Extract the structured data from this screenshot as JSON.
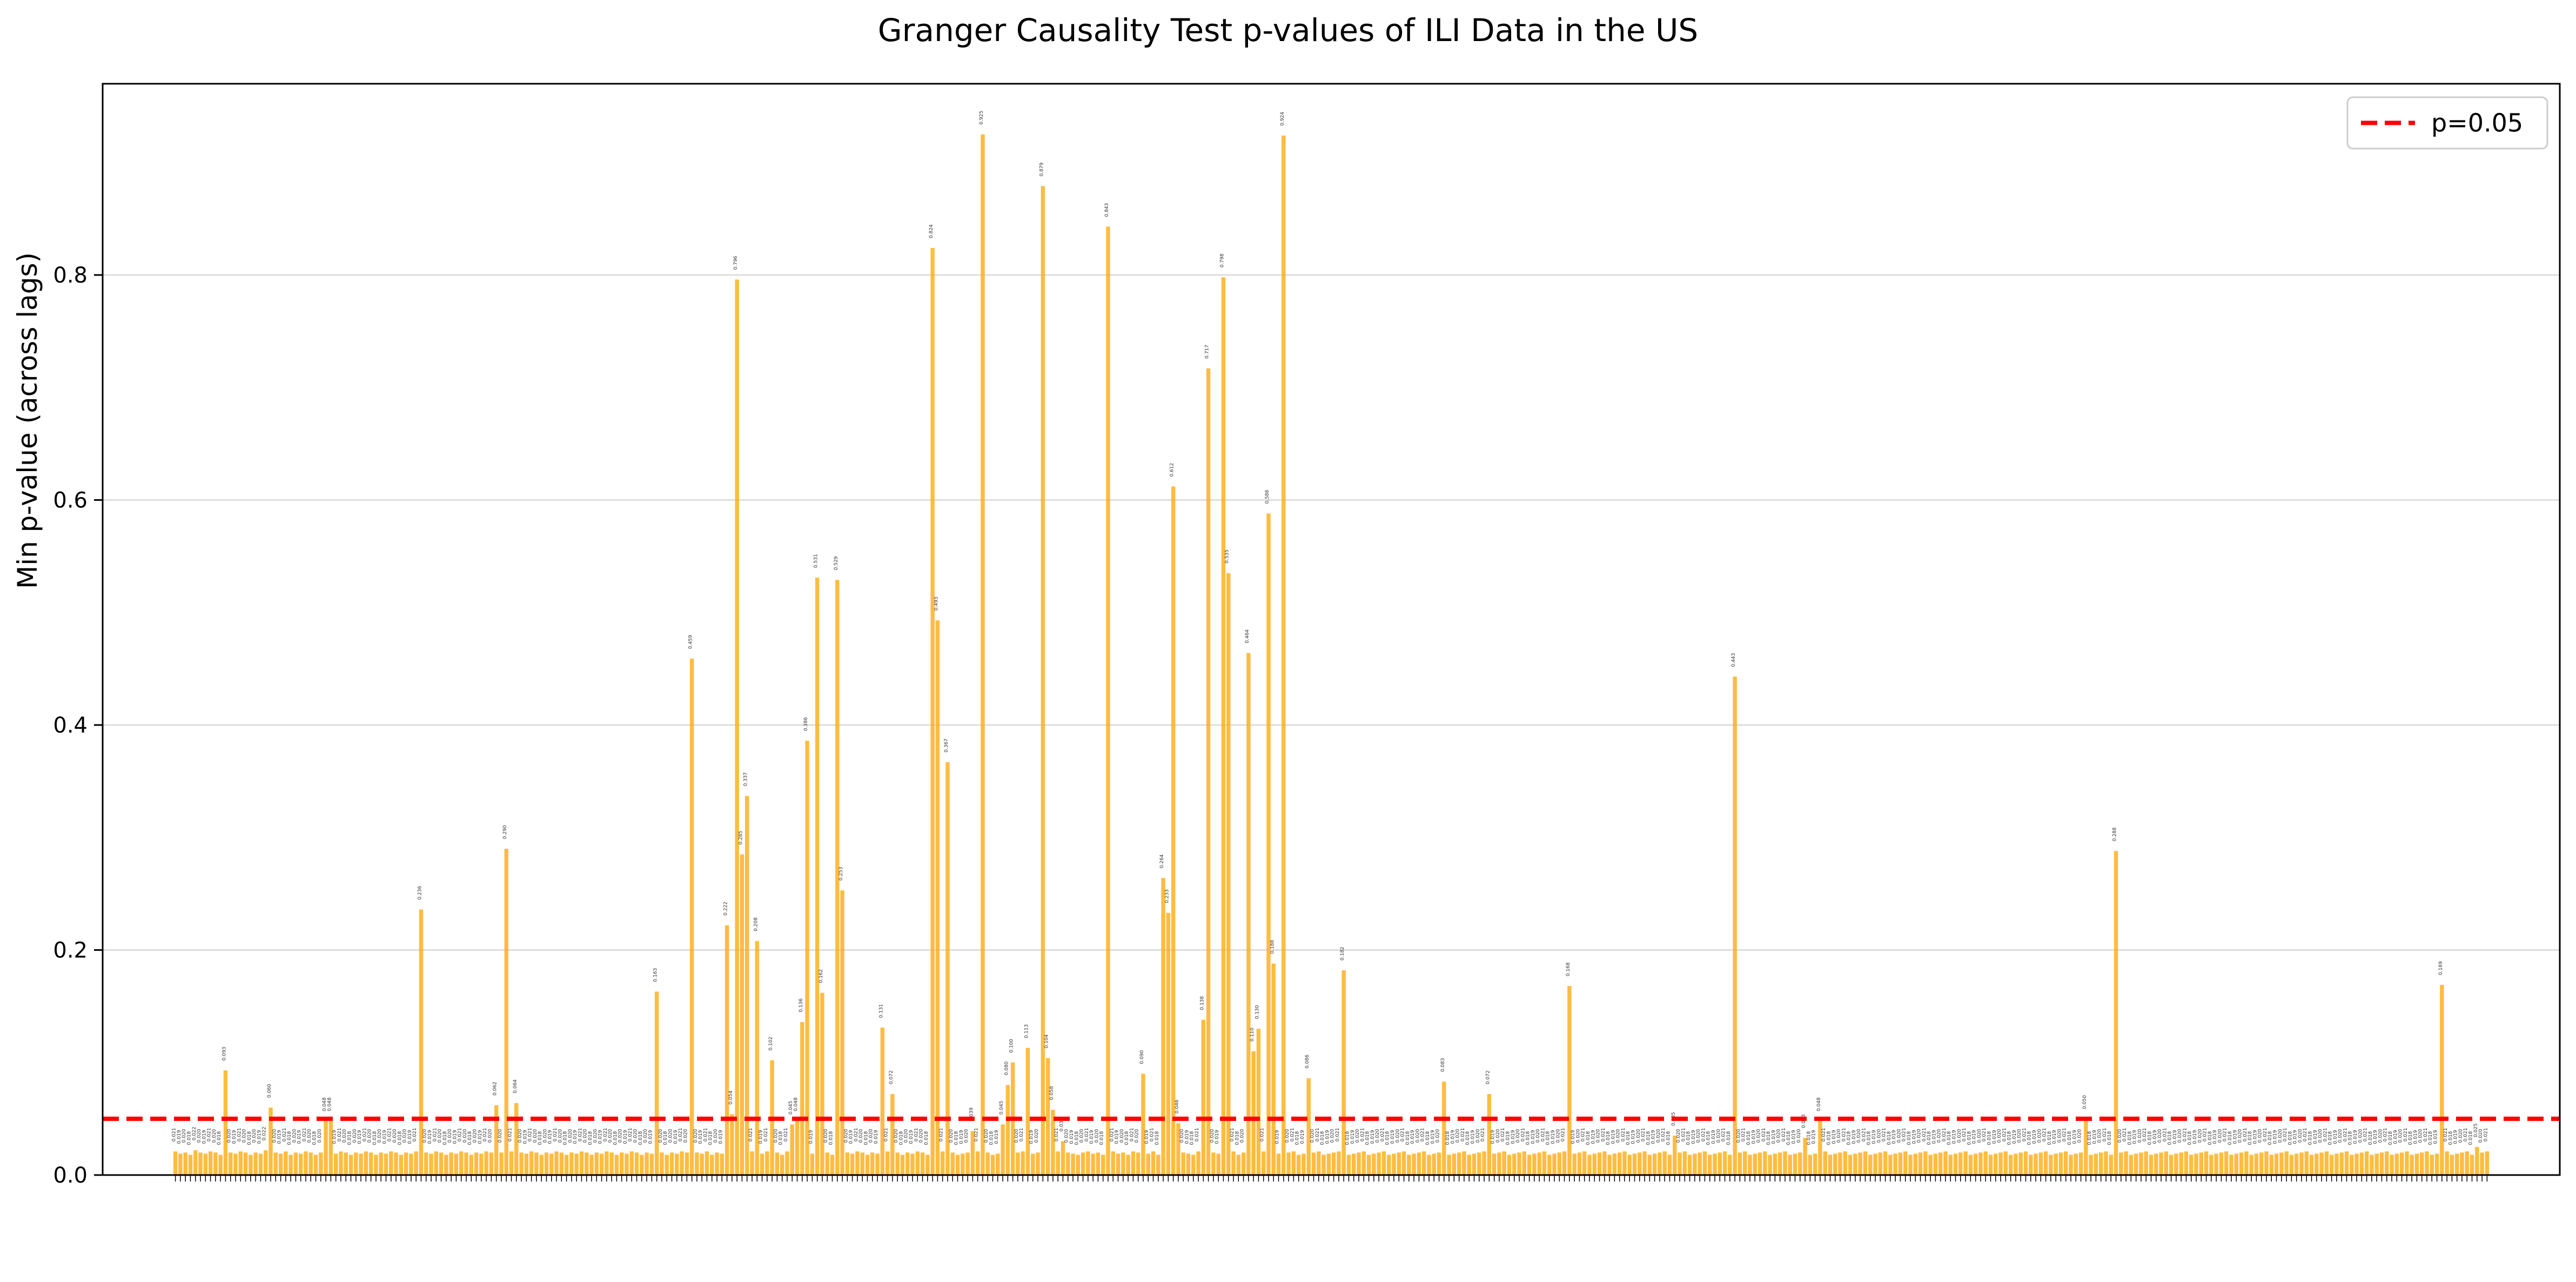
{
  "chart_data": {
    "type": "bar",
    "title": "Granger Causality Test p-values of ILI Data in the US",
    "xlabel": "",
    "ylabel": "Min p-value (across lags)",
    "ylim": [
      0,
      0.97
    ],
    "yticks": [
      0.0,
      0.2,
      0.4,
      0.6,
      0.8
    ],
    "ytick_labels": [
      "0.0",
      "0.2",
      "0.4",
      "0.6",
      "0.8"
    ],
    "grid": "horizontal",
    "bar_color": "#FFA500",
    "bar_opacity": 0.75,
    "n_categories": 465,
    "values": [
      0.021,
      0.019,
      0.02,
      0.018,
      0.022,
      0.02,
      0.019,
      0.021,
      0.02,
      0.018,
      0.093,
      0.02,
      0.019,
      0.021,
      0.02,
      0.018,
      0.02,
      0.019,
      0.022,
      0.06,
      0.02,
      0.019,
      0.021,
      0.018,
      0.02,
      0.019,
      0.021,
      0.02,
      0.018,
      0.02,
      0.048,
      0.048,
      0.019,
      0.021,
      0.02,
      0.018,
      0.02,
      0.019,
      0.021,
      0.02,
      0.018,
      0.02,
      0.019,
      0.021,
      0.02,
      0.018,
      0.02,
      0.019,
      0.021,
      0.236,
      0.02,
      0.019,
      0.021,
      0.02,
      0.018,
      0.02,
      0.019,
      0.021,
      0.02,
      0.018,
      0.02,
      0.019,
      0.021,
      0.02,
      0.062,
      0.02,
      0.29,
      0.021,
      0.064,
      0.02,
      0.019,
      0.021,
      0.02,
      0.018,
      0.02,
      0.019,
      0.021,
      0.02,
      0.018,
      0.02,
      0.019,
      0.021,
      0.02,
      0.018,
      0.02,
      0.019,
      0.021,
      0.02,
      0.018,
      0.02,
      0.019,
      0.021,
      0.02,
      0.018,
      0.02,
      0.019,
      0.163,
      0.02,
      0.018,
      0.02,
      0.019,
      0.021,
      0.02,
      0.459,
      0.02,
      0.019,
      0.021,
      0.018,
      0.02,
      0.019,
      0.222,
      0.054,
      0.796,
      0.285,
      0.337,
      0.021,
      0.208,
      0.019,
      0.021,
      0.102,
      0.02,
      0.018,
      0.021,
      0.045,
      0.048,
      0.136,
      0.386,
      0.019,
      0.531,
      0.162,
      0.02,
      0.018,
      0.529,
      0.253,
      0.02,
      0.019,
      0.021,
      0.02,
      0.018,
      0.02,
      0.019,
      0.131,
      0.021,
      0.072,
      0.02,
      0.018,
      0.02,
      0.019,
      0.021,
      0.02,
      0.018,
      0.824,
      0.493,
      0.021,
      0.367,
      0.02,
      0.018,
      0.019,
      0.02,
      0.039,
      0.021,
      0.925,
      0.02,
      0.018,
      0.019,
      0.045,
      0.08,
      0.1,
      0.02,
      0.021,
      0.113,
      0.019,
      0.02,
      0.879,
      0.104,
      0.058,
      0.021,
      0.03,
      0.02,
      0.019,
      0.018,
      0.02,
      0.021,
      0.019,
      0.02,
      0.018,
      0.843,
      0.021,
      0.019,
      0.02,
      0.018,
      0.021,
      0.02,
      0.09,
      0.019,
      0.021,
      0.018,
      0.264,
      0.233,
      0.612,
      0.046,
      0.02,
      0.019,
      0.018,
      0.021,
      0.138,
      0.717,
      0.02,
      0.019,
      0.798,
      0.535,
      0.021,
      0.018,
      0.02,
      0.464,
      0.11,
      0.13,
      0.021,
      0.588,
      0.188,
      0.019,
      0.924,
      0.02,
      0.021,
      0.018,
      0.019,
      0.086,
      0.02,
      0.021,
      0.018,
      0.019,
      0.02,
      0.021,
      0.182,
      0.018,
      0.019,
      0.02,
      0.021,
      0.018,
      0.019,
      0.02,
      0.021,
      0.018,
      0.019,
      0.02,
      0.021,
      0.018,
      0.019,
      0.02,
      0.021,
      0.018,
      0.019,
      0.02,
      0.083,
      0.018,
      0.019,
      0.02,
      0.021,
      0.018,
      0.019,
      0.02,
      0.021,
      0.072,
      0.019,
      0.02,
      0.021,
      0.018,
      0.019,
      0.02,
      0.021,
      0.018,
      0.019,
      0.02,
      0.021,
      0.018,
      0.019,
      0.02,
      0.021,
      0.168,
      0.019,
      0.02,
      0.021,
      0.018,
      0.019,
      0.02,
      0.021,
      0.018,
      0.019,
      0.02,
      0.021,
      0.018,
      0.019,
      0.02,
      0.021,
      0.018,
      0.019,
      0.02,
      0.021,
      0.018,
      0.035,
      0.02,
      0.021,
      0.018,
      0.019,
      0.02,
      0.021,
      0.018,
      0.019,
      0.02,
      0.021,
      0.018,
      0.443,
      0.02,
      0.021,
      0.018,
      0.019,
      0.02,
      0.021,
      0.018,
      0.019,
      0.02,
      0.021,
      0.018,
      0.019,
      0.02,
      0.033,
      0.018,
      0.019,
      0.048,
      0.021,
      0.018,
      0.019,
      0.02,
      0.021,
      0.018,
      0.019,
      0.02,
      0.021,
      0.018,
      0.019,
      0.02,
      0.021,
      0.018,
      0.019,
      0.02,
      0.021,
      0.018,
      0.019,
      0.02,
      0.021,
      0.018,
      0.019,
      0.02,
      0.021,
      0.018,
      0.019,
      0.02,
      0.021,
      0.018,
      0.019,
      0.02,
      0.021,
      0.018,
      0.019,
      0.02,
      0.021,
      0.018,
      0.019,
      0.02,
      0.021,
      0.018,
      0.019,
      0.02,
      0.021,
      0.018,
      0.019,
      0.02,
      0.021,
      0.018,
      0.019,
      0.02,
      0.05,
      0.018,
      0.019,
      0.02,
      0.021,
      0.018,
      0.288,
      0.02,
      0.021,
      0.018,
      0.019,
      0.02,
      0.021,
      0.018,
      0.019,
      0.02,
      0.021,
      0.018,
      0.019,
      0.02,
      0.021,
      0.018,
      0.019,
      0.02,
      0.021,
      0.018,
      0.019,
      0.02,
      0.021,
      0.018,
      0.019,
      0.02,
      0.021,
      0.018,
      0.019,
      0.02,
      0.021,
      0.018,
      0.019,
      0.02,
      0.021,
      0.018,
      0.019,
      0.02,
      0.021,
      0.018,
      0.019,
      0.02,
      0.021,
      0.018,
      0.019,
      0.02,
      0.021,
      0.018,
      0.019,
      0.02,
      0.021,
      0.018,
      0.019,
      0.02,
      0.021,
      0.018,
      0.019,
      0.02,
      0.021,
      0.018,
      0.019,
      0.02,
      0.021,
      0.018,
      0.019,
      0.169,
      0.021,
      0.018,
      0.019,
      0.02,
      0.021,
      0.018,
      0.025,
      0.02,
      0.021
    ],
    "reference_line": {
      "label": "p=0.05",
      "value": 0.05,
      "color": "#FF0000",
      "style": "dashed"
    },
    "legend": {
      "position": "top-right",
      "entries": [
        "p=0.05"
      ]
    }
  }
}
